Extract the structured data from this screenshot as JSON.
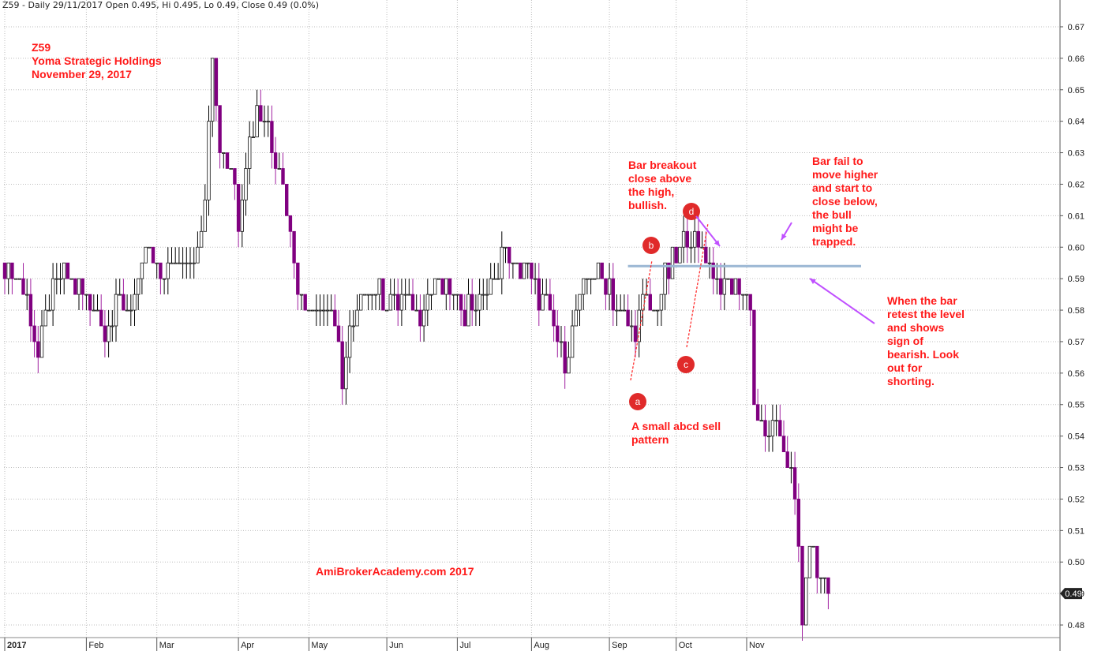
{
  "header": "Z59 - Daily 29/11/2017 Open 0.495, Hi 0.495, Lo 0.49, Close 0.49 (0.0%)",
  "title_lines": [
    "Z59",
    "Yoma Strategic Holdings",
    "November 29, 2017"
  ],
  "watermark": "AmiBrokerAcademy.com  2017",
  "annotations": {
    "breakout": [
      "Bar breakout",
      "close above",
      "the high,",
      "bullish."
    ],
    "fail": [
      "Bar fail to",
      "move higher",
      "and start to",
      "close below,",
      "the bull",
      "might be",
      "trapped."
    ],
    "retest": [
      "When the bar",
      "retest the level",
      "and shows",
      "sign of",
      "bearish. Look",
      "out for",
      "shorting."
    ],
    "pattern": [
      "A small abcd sell",
      "pattern"
    ]
  },
  "points": [
    {
      "label": "a",
      "value": 0.557
    },
    {
      "label": "b",
      "value": 0.601
    },
    {
      "label": "c",
      "value": 0.567
    },
    {
      "label": "d",
      "value": 0.606
    }
  ],
  "colors": {
    "up": "#111111",
    "down": "#800080",
    "wick_up": "#000000",
    "wick_down": "#a020a0",
    "level": "#9bb7d4",
    "annotation": "#ff1a1a",
    "grid": "#bdbdbd"
  },
  "chart_data": {
    "type": "candlestick",
    "ylim": [
      0.476,
      0.674
    ],
    "yticks": [
      "0.67",
      "0.66",
      "0.65",
      "0.64",
      "0.63",
      "0.62",
      "0.61",
      "0.60",
      "0.59",
      "0.58",
      "0.57",
      "0.56",
      "0.55",
      "0.54",
      "0.53",
      "0.52",
      "0.51",
      "0.50",
      "0.49",
      "0.48"
    ],
    "months": [
      "2017",
      "Feb",
      "Mar",
      "Apr",
      "May",
      "Jun",
      "Jul",
      "Aug",
      "Sep",
      "Oct",
      "Nov"
    ],
    "month_start_index": [
      0,
      22,
      41,
      63,
      82,
      103,
      122,
      142,
      163,
      181,
      200
    ],
    "last_close": "0.49",
    "resistance_level": 0.594,
    "series": [
      {
        "name": "Z59",
        "anchors": [
          [
            0,
            0.595
          ],
          [
            4,
            0.59
          ],
          [
            7,
            0.58
          ],
          [
            9,
            0.565
          ],
          [
            12,
            0.583
          ],
          [
            16,
            0.59
          ],
          [
            20,
            0.586
          ],
          [
            24,
            0.582
          ],
          [
            27,
            0.574
          ],
          [
            31,
            0.582
          ],
          [
            35,
            0.582
          ],
          [
            38,
            0.6
          ],
          [
            41,
            0.59
          ],
          [
            45,
            0.594
          ],
          [
            49,
            0.596
          ],
          [
            52,
            0.6
          ],
          [
            54,
            0.614
          ],
          [
            56,
            0.66
          ],
          [
            58,
            0.634
          ],
          [
            61,
            0.626
          ],
          [
            63,
            0.61
          ],
          [
            65,
            0.628
          ],
          [
            68,
            0.645
          ],
          [
            71,
            0.638
          ],
          [
            74,
            0.625
          ],
          [
            77,
            0.605
          ],
          [
            80,
            0.582
          ],
          [
            84,
            0.582
          ],
          [
            88,
            0.58
          ],
          [
            91,
            0.56
          ],
          [
            93,
            0.571
          ],
          [
            97,
            0.587
          ],
          [
            100,
            0.587
          ],
          [
            104,
            0.584
          ],
          [
            108,
            0.583
          ],
          [
            112,
            0.58
          ],
          [
            116,
            0.588
          ],
          [
            120,
            0.586
          ],
          [
            124,
            0.58
          ],
          [
            128,
            0.584
          ],
          [
            132,
            0.588
          ],
          [
            134,
            0.598
          ],
          [
            137,
            0.595
          ],
          [
            140,
            0.594
          ],
          [
            143,
            0.588
          ],
          [
            146,
            0.58
          ],
          [
            149,
            0.57
          ],
          [
            151,
            0.563
          ],
          [
            154,
            0.58
          ],
          [
            157,
            0.592
          ],
          [
            160,
            0.594
          ],
          [
            162,
            0.59
          ],
          [
            166,
            0.58
          ],
          [
            169,
            0.572
          ],
          [
            172,
            0.58
          ],
          [
            176,
            0.581
          ],
          [
            178,
            0.59
          ],
          [
            181,
            0.597
          ],
          [
            184,
            0.605
          ],
          [
            187,
            0.6
          ],
          [
            190,
            0.594
          ],
          [
            193,
            0.59
          ],
          [
            196,
            0.586
          ],
          [
            199,
            0.585
          ],
          [
            201,
            0.584
          ],
          [
            202,
            0.55
          ],
          [
            205,
            0.54
          ],
          [
            208,
            0.543
          ],
          [
            211,
            0.53
          ],
          [
            213,
            0.52
          ],
          [
            214,
            0.505
          ],
          [
            215,
            0.482
          ],
          [
            216,
            0.49
          ],
          [
            217,
            0.508
          ],
          [
            219,
            0.498
          ],
          [
            221,
            0.494
          ],
          [
            222,
            0.49
          ]
        ]
      }
    ]
  }
}
